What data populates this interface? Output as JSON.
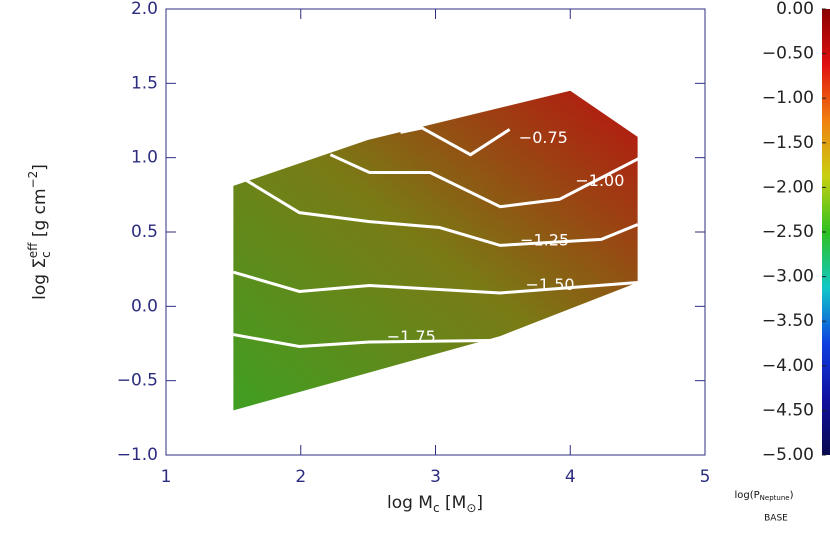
{
  "chart_data": {
    "type": "contour",
    "xlabel": [
      "log M",
      "c",
      " [M",
      "⊙",
      "]"
    ],
    "ylabel": [
      "log Σ",
      "c",
      "eff",
      " [g cm",
      "−2",
      "]"
    ],
    "xlim": [
      1,
      5
    ],
    "xticks": [
      1,
      2,
      3,
      4,
      5
    ],
    "ylim": [
      -1,
      2
    ],
    "yticks": [
      {
        "value": 2,
        "label": "2.0"
      },
      {
        "value": 1.5,
        "label": "1.5"
      },
      {
        "value": 1,
        "label": "1.0"
      },
      {
        "value": 0.5,
        "label": "0.5"
      },
      {
        "value": 0,
        "label": "0.0"
      },
      {
        "value": -0.5,
        "label": "−0.5"
      },
      {
        "value": -1,
        "label": "−1.0"
      }
    ],
    "region": {
      "x": [
        1.5,
        2.5,
        4.0,
        4.5,
        4.5,
        3.48,
        1.5
      ],
      "y": [
        0.81,
        1.12,
        1.45,
        1.14,
        0.16,
        -0.2,
        -0.7
      ],
      "colors": [
        "#3f9f22",
        "#7a7a15",
        "#b81210"
      ]
    },
    "contours": [
      {
        "level": -0.75,
        "label": "−0.75",
        "x": [
          2.74,
          2.9,
          3.26,
          3.55
        ],
        "y": [
          1.17,
          1.2,
          1.02,
          1.19
        ],
        "label_x": 3.8,
        "label_y": 1.13
      },
      {
        "level": -1.0,
        "label": "−1.00",
        "x": [
          2.22,
          2.51,
          2.96,
          3.48,
          3.92,
          4.52
        ],
        "y": [
          1.02,
          0.9,
          0.9,
          0.67,
          0.72,
          1.0
        ],
        "label_x": 4.22,
        "label_y": 0.84
      },
      {
        "level": -1.25,
        "label": "−1.25",
        "x": [
          1.5,
          1.99,
          2.51,
          3.03,
          3.48,
          4.23,
          4.5
        ],
        "y": [
          0.9,
          0.63,
          0.57,
          0.53,
          0.41,
          0.45,
          0.55
        ],
        "label_x": 3.81,
        "label_y": 0.44
      },
      {
        "level": -1.5,
        "label": "−1.50",
        "x": [
          1.5,
          1.99,
          2.51,
          3.48,
          4.5
        ],
        "y": [
          0.23,
          0.1,
          0.14,
          0.09,
          0.16
        ],
        "label_x": 3.85,
        "label_y": 0.14
      },
      {
        "level": -1.75,
        "label": "−1.75",
        "x": [
          1.5,
          1.99,
          2.51,
          3.4
        ],
        "y": [
          -0.19,
          -0.27,
          -0.24,
          -0.23
        ],
        "label_x": 2.82,
        "label_y": -0.21
      }
    ],
    "colorbar": {
      "clim": [
        -5,
        0
      ],
      "ticks": [
        {
          "value": 0,
          "label": "0.00"
        },
        {
          "value": -0.5,
          "label": "−0.50"
        },
        {
          "value": -1,
          "label": "−1.00"
        },
        {
          "value": -1.5,
          "label": "−1.50"
        },
        {
          "value": -2,
          "label": "−2.00"
        },
        {
          "value": -2.5,
          "label": "−2.50"
        },
        {
          "value": -3,
          "label": "−3.00"
        },
        {
          "value": -3.5,
          "label": "−3.50"
        },
        {
          "value": -4,
          "label": "−4.00"
        },
        {
          "value": -4.5,
          "label": "−4.50"
        },
        {
          "value": -5,
          "label": "−5.00"
        }
      ],
      "colormap": [
        "#8a0000",
        "#e01010",
        "#f08010",
        "#c8d010",
        "#30c020",
        "#10c8c8",
        "#1040e0",
        "#1010a0",
        "#0a0a50"
      ],
      "caption": [
        "log(P",
        "Neptune",
        ")"
      ],
      "caption2": "BASE"
    }
  }
}
